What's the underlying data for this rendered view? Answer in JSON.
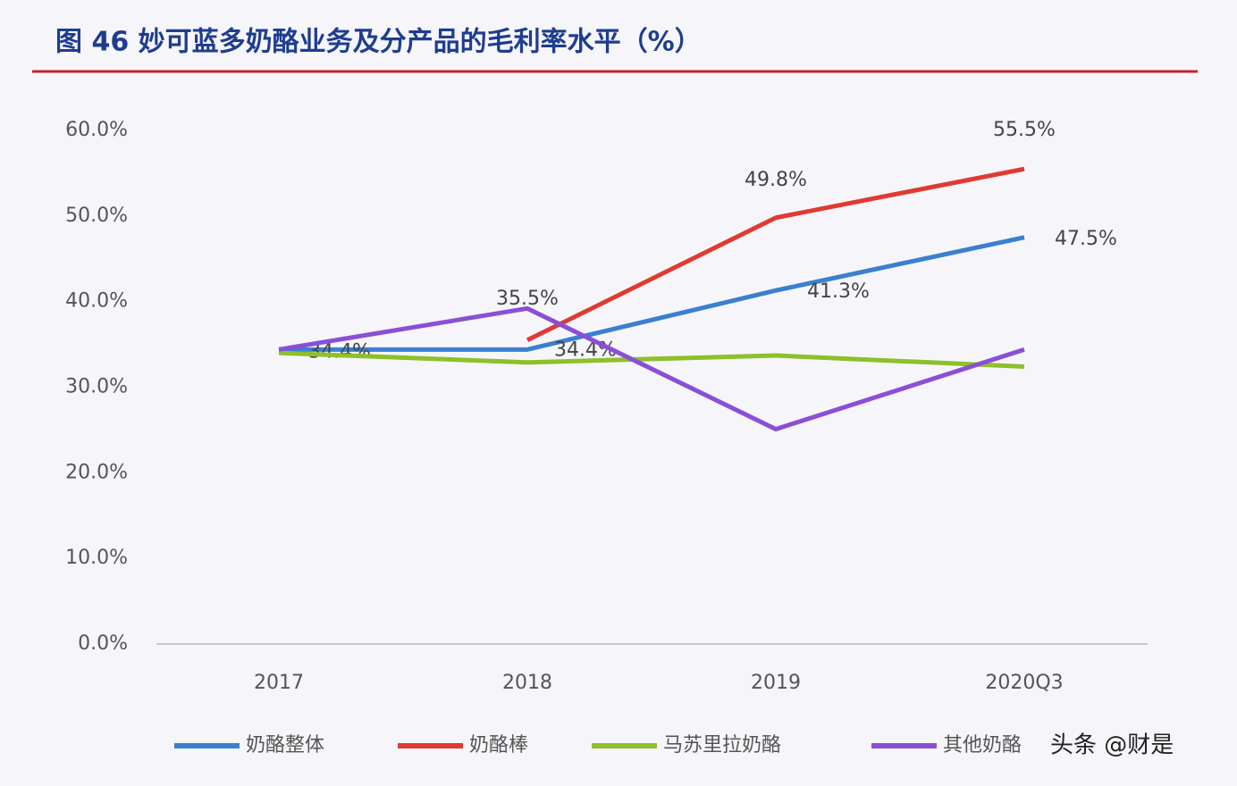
{
  "chart_data": {
    "type": "line",
    "title": "图 46 妙可蓝多奶酪业务及分产品的毛利率水平（%）",
    "categories": [
      "2017",
      "2018",
      "2019",
      "2020Q3"
    ],
    "series": [
      {
        "name": "奶酪整体",
        "color": "#3a7fd0",
        "values": [
          34.4,
          34.4,
          41.3,
          47.5
        ],
        "value_labels": [
          "34.4%",
          "34.4%",
          "41.3%",
          "47.5%"
        ]
      },
      {
        "name": "奶酪棒",
        "color": "#e03a32",
        "values": [
          null,
          35.5,
          49.8,
          55.5
        ],
        "value_labels": [
          null,
          "35.5%",
          "49.8%",
          "55.5%"
        ]
      },
      {
        "name": "马苏里拉奶酪",
        "color": "#8fbf2a",
        "values": [
          34.0,
          32.9,
          33.7,
          32.4
        ]
      },
      {
        "name": "其他奶酪",
        "color": "#8a4fd6",
        "values": [
          34.4,
          39.2,
          25.1,
          34.4
        ]
      }
    ],
    "ylim": [
      0,
      60
    ],
    "yticks": [
      {
        "value": 0,
        "label": "0.0%"
      },
      {
        "value": 10,
        "label": "10.0%"
      },
      {
        "value": 20,
        "label": "20.0%"
      },
      {
        "value": 30,
        "label": "30.0%"
      },
      {
        "value": 40,
        "label": "40.0%"
      },
      {
        "value": 50,
        "label": "50.0%"
      },
      {
        "value": 60,
        "label": "60.0%"
      }
    ],
    "grid": false,
    "legend": "bottom",
    "watermark": "头条 @财是"
  }
}
